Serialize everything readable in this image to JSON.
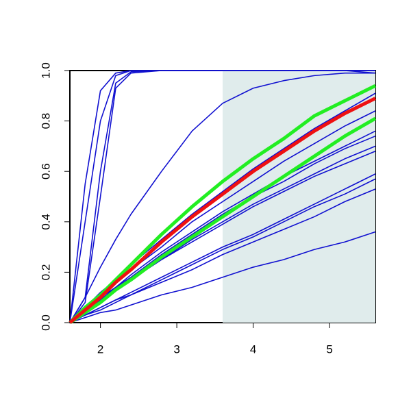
{
  "chart_data": {
    "type": "line",
    "x": [
      1.6,
      1.8,
      2.0,
      2.2,
      2.4,
      2.8,
      3.2,
      3.6,
      4.0,
      4.4,
      4.8,
      5.2,
      5.6
    ],
    "xlim": [
      1.6,
      5.6
    ],
    "ylim": [
      0,
      1
    ],
    "xticks": [
      2,
      3,
      4,
      5
    ],
    "yticks": [
      {
        "value": 0,
        "label": "0.0"
      },
      0.2,
      0.4,
      0.6,
      0.8,
      {
        "value": 1,
        "label": "1.0"
      }
    ],
    "shade_xlim": [
      3.6,
      5.6
    ],
    "shade_color": "#e0ecec",
    "series": [
      {
        "color": "#1010d0",
        "width": 1.6,
        "values": [
          0,
          0.55,
          0.92,
          0.99,
          1,
          1,
          1,
          1,
          1,
          1,
          1,
          1,
          1
        ]
      },
      {
        "color": "#1010d0",
        "width": 1.6,
        "values": [
          0,
          0.4,
          0.8,
          0.98,
          1,
          1,
          1,
          1,
          1,
          1,
          1,
          1,
          1
        ]
      },
      {
        "color": "#1010d0",
        "width": 1.6,
        "values": [
          0,
          0.1,
          0.6,
          0.95,
          0.995,
          1,
          1,
          1,
          1,
          1,
          1,
          1,
          1
        ]
      },
      {
        "color": "#1010d0",
        "width": 1.6,
        "values": [
          0,
          0.08,
          0.5,
          0.93,
          0.99,
          1,
          1,
          1,
          1,
          1,
          1,
          1,
          0.99
        ]
      },
      {
        "color": "#1010d0",
        "width": 1.6,
        "values": [
          0,
          0.1,
          0.22,
          0.33,
          0.43,
          0.6,
          0.76,
          0.87,
          0.93,
          0.96,
          0.98,
          0.99,
          0.99
        ]
      },
      {
        "color": "#1010d0",
        "width": 1.6,
        "values": [
          0,
          0.06,
          0.12,
          0.17,
          0.23,
          0.33,
          0.43,
          0.52,
          0.61,
          0.69,
          0.77,
          0.84,
          0.91
        ]
      },
      {
        "color": "#1010d0",
        "width": 1.6,
        "values": [
          0,
          0.05,
          0.11,
          0.16,
          0.21,
          0.3,
          0.4,
          0.48,
          0.56,
          0.64,
          0.71,
          0.78,
          0.84
        ]
      },
      {
        "color": "#1010d0",
        "width": 1.6,
        "values": [
          0,
          0.05,
          0.1,
          0.14,
          0.19,
          0.28,
          0.36,
          0.44,
          0.51,
          0.58,
          0.64,
          0.7,
          0.76
        ]
      },
      {
        "color": "#1010d0",
        "width": 1.6,
        "values": [
          0,
          0.05,
          0.09,
          0.14,
          0.18,
          0.27,
          0.35,
          0.43,
          0.5,
          0.56,
          0.63,
          0.69,
          0.74
        ]
      },
      {
        "color": "#1010d0",
        "width": 1.6,
        "values": [
          0,
          0.05,
          0.09,
          0.13,
          0.17,
          0.25,
          0.33,
          0.4,
          0.47,
          0.53,
          0.59,
          0.65,
          0.7
        ]
      },
      {
        "color": "#1010d0",
        "width": 1.6,
        "values": [
          0,
          0.04,
          0.09,
          0.13,
          0.17,
          0.25,
          0.32,
          0.39,
          0.46,
          0.52,
          0.58,
          0.63,
          0.68
        ]
      },
      {
        "color": "#1010d0",
        "width": 1.6,
        "values": [
          0,
          0.03,
          0.06,
          0.09,
          0.12,
          0.18,
          0.24,
          0.3,
          0.35,
          0.41,
          0.47,
          0.53,
          0.59
        ]
      },
      {
        "color": "#1010d0",
        "width": 1.6,
        "values": [
          0,
          0.03,
          0.06,
          0.09,
          0.11,
          0.17,
          0.23,
          0.29,
          0.34,
          0.4,
          0.46,
          0.51,
          0.57
        ]
      },
      {
        "color": "#1010d0",
        "width": 1.6,
        "values": [
          0,
          0.03,
          0.05,
          0.08,
          0.11,
          0.16,
          0.21,
          0.27,
          0.32,
          0.37,
          0.42,
          0.48,
          0.53
        ]
      },
      {
        "color": "#1010d0",
        "width": 1.6,
        "values": [
          0,
          0.02,
          0.04,
          0.05,
          0.07,
          0.11,
          0.14,
          0.18,
          0.22,
          0.25,
          0.29,
          0.32,
          0.36
        ]
      },
      {
        "color": "#22ee22",
        "width": 5,
        "values": [
          0,
          0.06,
          0.11,
          0.17,
          0.23,
          0.35,
          0.46,
          0.56,
          0.65,
          0.73,
          0.82,
          0.88,
          0.94
        ]
      },
      {
        "color": "#22ee22",
        "width": 5,
        "values": [
          0,
          0.04,
          0.08,
          0.13,
          0.17,
          0.26,
          0.34,
          0.42,
          0.5,
          0.58,
          0.66,
          0.74,
          0.81
        ]
      },
      {
        "color": "#ee1111",
        "width": 5,
        "values": [
          0,
          0.05,
          0.1,
          0.16,
          0.21,
          0.32,
          0.42,
          0.51,
          0.6,
          0.68,
          0.76,
          0.83,
          0.89
        ]
      }
    ]
  }
}
